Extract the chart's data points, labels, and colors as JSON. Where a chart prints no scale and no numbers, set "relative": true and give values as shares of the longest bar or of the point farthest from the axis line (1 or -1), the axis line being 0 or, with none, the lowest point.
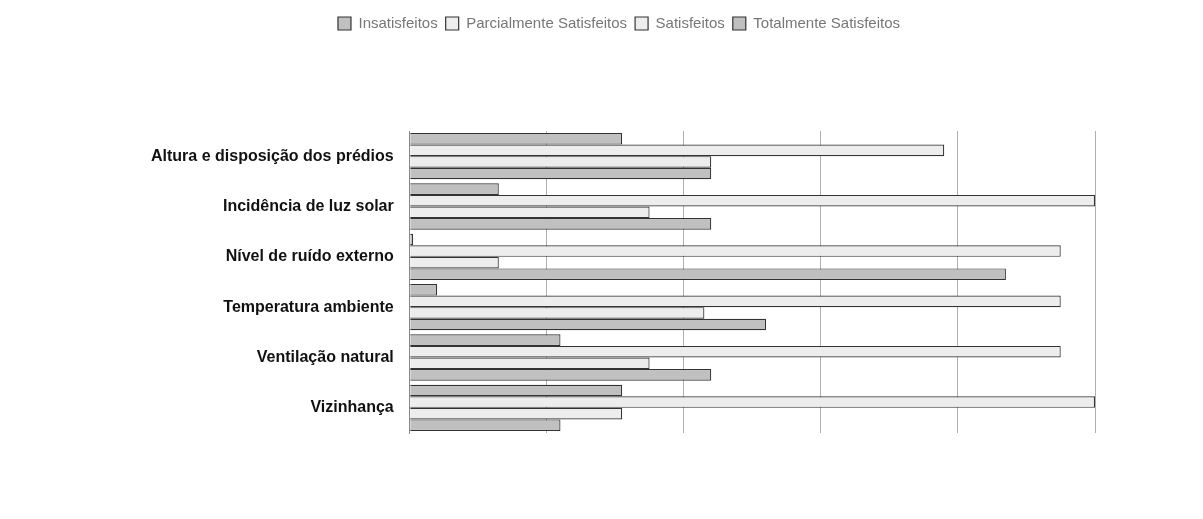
{
  "chart_data": {
    "type": "bar",
    "orientation": "horizontal",
    "relative": true,
    "grid": "x",
    "legend": "top",
    "categories": [
      "Altura e disposição dos prédios",
      "Incidência de luz solar",
      "Nível de ruído externo",
      "Temperatura ambiente",
      "Ventilação natural",
      "Vizinhança"
    ],
    "series": [
      {
        "name": "Insatisfeitos",
        "color": "#c0c0c0",
        "values": [
          0.31,
          0.13,
          0.005,
          0.04,
          0.22,
          0.31
        ]
      },
      {
        "name": "Parcialmente Satisfeitos",
        "color": "#ededed",
        "values": [
          0.78,
          1,
          0.95,
          0.95,
          0.95,
          1
        ]
      },
      {
        "name": "Satisfeitos",
        "color": "#ededed",
        "values": [
          0.44,
          0.35,
          0.13,
          0.43,
          0.35,
          0.31
        ]
      },
      {
        "name": "Totalmente Satisfeitos",
        "color": "#c0c0c0",
        "values": [
          0.44,
          0.44,
          0.87,
          0.52,
          0.44,
          0.22
        ]
      }
    ]
  }
}
